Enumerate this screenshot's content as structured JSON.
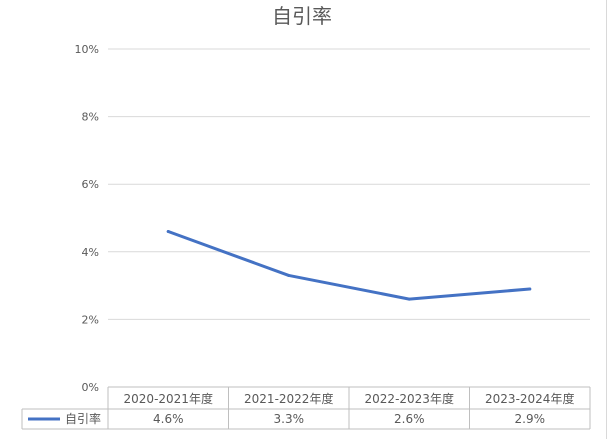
{
  "chart_data": {
    "type": "line",
    "title": "自引率",
    "categories": [
      "2020-2021年度",
      "2021-2022年度",
      "2022-2023年度",
      "2023-2024年度"
    ],
    "series": [
      {
        "name": "自引率",
        "values": [
          4.6,
          3.3,
          2.6,
          2.9
        ],
        "labels": [
          "4.6%",
          "3.3%",
          "2.6%",
          "2.9%"
        ],
        "color": "#4472c4"
      }
    ],
    "ylim": [
      0,
      10
    ],
    "yticks": [
      "0%",
      "2%",
      "4%",
      "6%",
      "8%",
      "10%"
    ],
    "grid": true,
    "legend": "data-table"
  }
}
